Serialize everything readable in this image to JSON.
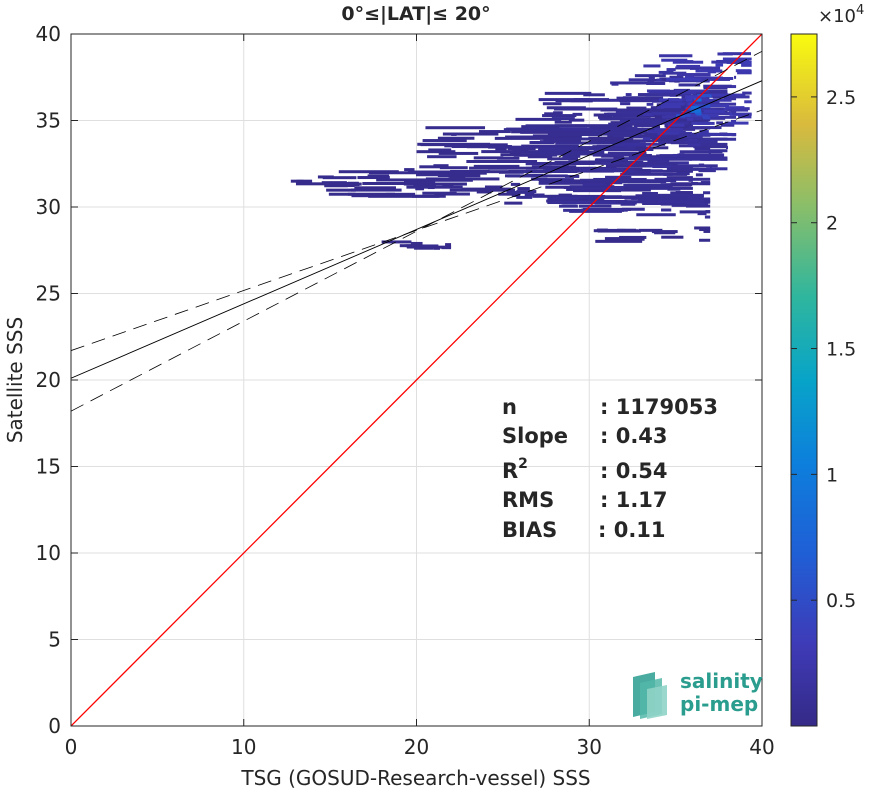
{
  "chart_data": {
    "type": "heatmap",
    "title": "0°≤|LAT|≤ 20°",
    "xlabel": "TSG (GOSUD-Research-vessel) SSS",
    "ylabel": "Satellite SSS",
    "xlim": [
      0,
      40
    ],
    "ylim": [
      0,
      40
    ],
    "x_ticks": [
      "0",
      "10",
      "20",
      "30",
      "40"
    ],
    "y_ticks": [
      "0",
      "5",
      "10",
      "15",
      "20",
      "25",
      "30",
      "35",
      "40"
    ],
    "grid": true,
    "identity_line": {
      "x": [
        0,
        40
      ],
      "y": [
        0,
        40
      ],
      "color": "#ff0000"
    },
    "regression_line": {
      "x": [
        0,
        40
      ],
      "y": [
        20.1,
        37.3
      ],
      "color": "#000000",
      "style": "solid"
    },
    "error_bounds": [
      {
        "x": [
          0,
          40
        ],
        "y": [
          21.7,
          35.6
        ],
        "style": "dashed"
      },
      {
        "x": [
          0,
          40
        ],
        "y": [
          18.2,
          39.0
        ],
        "style": "dashed"
      }
    ],
    "density_blobs": [
      {
        "xr": [
          12,
          18
        ],
        "yr": [
          31.2,
          31.5
        ],
        "v": 300
      },
      {
        "xr": [
          14,
          26
        ],
        "yr": [
          30.6,
          32.2
        ],
        "v": 400
      },
      {
        "xr": [
          20,
          32
        ],
        "yr": [
          32.0,
          34.6
        ],
        "v": 500
      },
      {
        "xr": [
          25,
          36
        ],
        "yr": [
          30.0,
          35.8
        ],
        "v": 700
      },
      {
        "xr": [
          27,
          37
        ],
        "yr": [
          29.4,
          36.6
        ],
        "v": 900
      },
      {
        "xr": [
          31,
          38
        ],
        "yr": [
          32.0,
          37.6
        ],
        "v": 1200
      },
      {
        "xr": [
          33,
          38.5
        ],
        "yr": [
          33.5,
          38.2
        ],
        "v": 1800
      },
      {
        "xr": [
          34,
          39.4
        ],
        "yr": [
          34.5,
          39.0
        ],
        "v": 2500
      },
      {
        "xr": [
          35,
          37
        ],
        "yr": [
          35.0,
          36.6
        ],
        "v": 4500
      },
      {
        "xr": [
          35.6,
          36.5
        ],
        "yr": [
          35.3,
          36.2
        ],
        "v": 7000
      },
      {
        "xr": [
          17,
          22
        ],
        "yr": [
          27.6,
          28.1
        ],
        "v": 300
      },
      {
        "xr": [
          30,
          37
        ],
        "yr": [
          28.0,
          28.8
        ],
        "v": 350
      }
    ],
    "colorbar": {
      "min": 0,
      "max": 27500,
      "ticks": [
        5000,
        10000,
        15000,
        20000,
        25000
      ],
      "tick_labels": [
        "0.5",
        "1",
        "1.5",
        "2",
        "2.5"
      ],
      "exponent_base": "×10",
      "exponent_power": "4"
    },
    "stats": [
      {
        "label": "n",
        "value": ": 1179053"
      },
      {
        "label": "Slope",
        "value": ": 0.43"
      },
      {
        "label": "R",
        "sup": "2",
        "value": ": 0.54"
      },
      {
        "label": "RMS",
        "value": ": 1.17"
      },
      {
        "label": "BIAS",
        "value": ": 0.11"
      }
    ]
  },
  "logo": {
    "line1": "salinity",
    "line2": "pi-mep"
  },
  "colors": {
    "identity": "#ff0000",
    "axis": "#262626",
    "grid": "#dfdfdf",
    "logo_teal": "#2a9d8f"
  }
}
